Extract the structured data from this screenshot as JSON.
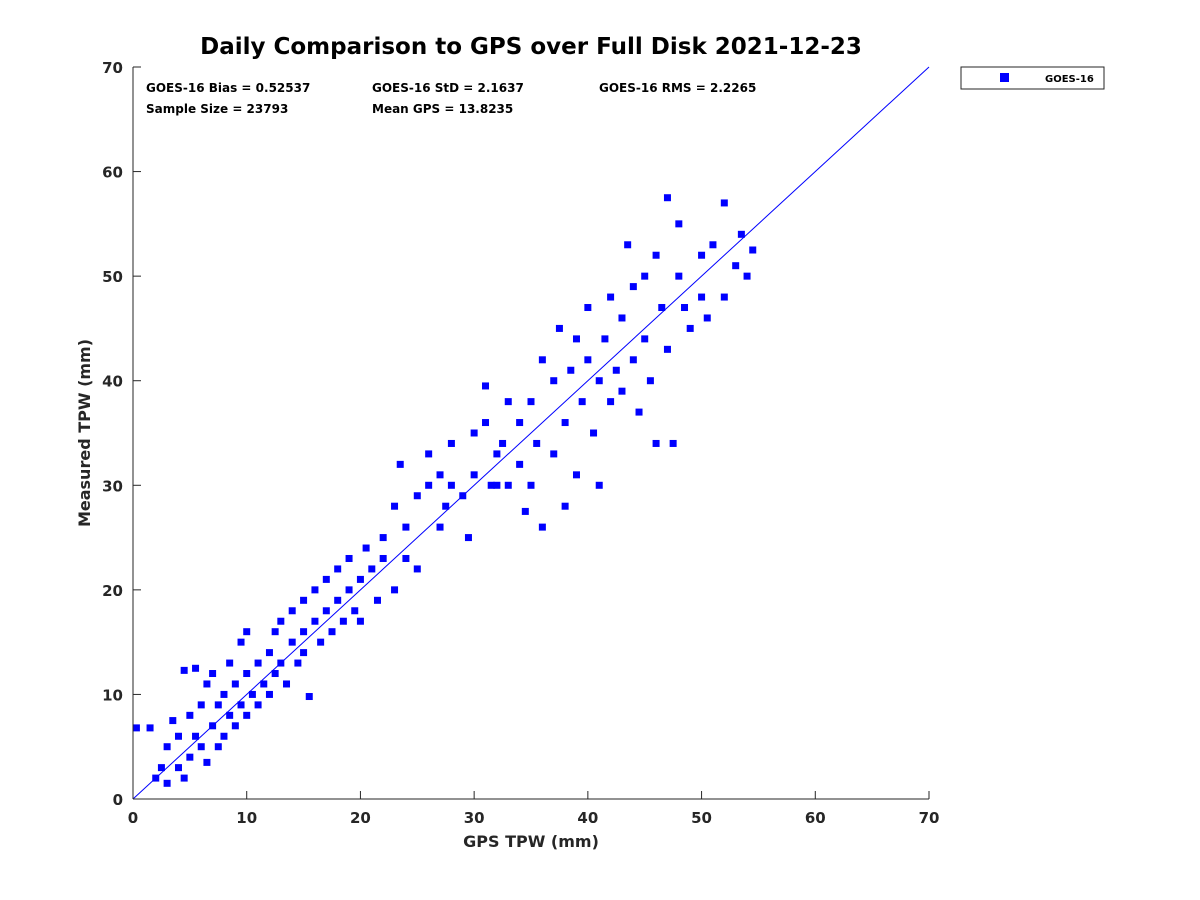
{
  "chart_data": {
    "type": "scatter",
    "title": "Daily Comparison to GPS over Full Disk 2021-12-23",
    "xlabel": "GPS TPW (mm)",
    "ylabel": "Measured TPW (mm)",
    "xlim": [
      0,
      70
    ],
    "ylim": [
      0,
      70
    ],
    "xticks": [
      "0",
      "10",
      "20",
      "30",
      "40",
      "50",
      "60",
      "70"
    ],
    "yticks": [
      "0",
      "10",
      "20",
      "30",
      "40",
      "50",
      "60",
      "70"
    ],
    "grid": false,
    "legend": {
      "position": "top-right-outside",
      "entries": [
        "GOES-16"
      ]
    },
    "stats": [
      "GOES-16 Bias = 0.52537",
      "GOES-16 StD = 2.1637",
      "GOES-16 RMS = 2.2265",
      "Sample Size = 23793",
      "Mean GPS = 13.8235"
    ],
    "reference_line": {
      "name": "1:1 line",
      "from": [
        0,
        0
      ],
      "to": [
        70,
        70
      ]
    },
    "series": [
      {
        "name": "GOES-16",
        "color": "#0000ff",
        "note": "representative sample of the 23793 points",
        "points": [
          [
            0.3,
            6.8
          ],
          [
            1.5,
            6.8
          ],
          [
            2,
            2
          ],
          [
            2.5,
            3
          ],
          [
            3,
            1.5
          ],
          [
            3,
            5
          ],
          [
            3.5,
            7.5
          ],
          [
            4,
            3
          ],
          [
            4,
            6
          ],
          [
            4.5,
            12.3
          ],
          [
            4.5,
            2
          ],
          [
            5,
            8
          ],
          [
            5,
            4
          ],
          [
            5.5,
            12.5
          ],
          [
            5.5,
            6
          ],
          [
            6,
            5
          ],
          [
            6,
            9
          ],
          [
            6.5,
            11
          ],
          [
            6.5,
            3.5
          ],
          [
            7,
            7
          ],
          [
            7,
            12
          ],
          [
            7.5,
            9
          ],
          [
            7.5,
            5
          ],
          [
            8,
            10
          ],
          [
            8,
            6
          ],
          [
            8.5,
            13
          ],
          [
            8.5,
            8
          ],
          [
            9,
            11
          ],
          [
            9,
            7
          ],
          [
            9.5,
            15
          ],
          [
            9.5,
            9
          ],
          [
            10,
            12
          ],
          [
            10,
            8
          ],
          [
            10,
            16
          ],
          [
            10.5,
            10
          ],
          [
            11,
            13
          ],
          [
            11,
            9
          ],
          [
            11.5,
            11
          ],
          [
            12,
            14
          ],
          [
            12,
            10
          ],
          [
            12.5,
            16
          ],
          [
            12.5,
            12
          ],
          [
            13,
            13
          ],
          [
            13,
            17
          ],
          [
            13.5,
            11
          ],
          [
            14,
            15
          ],
          [
            14,
            18
          ],
          [
            14.5,
            13
          ],
          [
            15,
            16
          ],
          [
            15,
            19
          ],
          [
            15,
            14
          ],
          [
            15.5,
            9.8
          ],
          [
            16,
            17
          ],
          [
            16,
            20
          ],
          [
            16.5,
            15
          ],
          [
            17,
            18
          ],
          [
            17,
            21
          ],
          [
            17.5,
            16
          ],
          [
            18,
            19
          ],
          [
            18,
            22
          ],
          [
            18.5,
            17
          ],
          [
            19,
            20
          ],
          [
            19,
            23
          ],
          [
            19.5,
            18
          ],
          [
            20,
            21
          ],
          [
            20,
            17
          ],
          [
            20.5,
            24
          ],
          [
            21,
            22
          ],
          [
            21.5,
            19
          ],
          [
            22,
            23
          ],
          [
            22,
            25
          ],
          [
            23,
            20
          ],
          [
            23,
            28
          ],
          [
            23.5,
            32
          ],
          [
            24,
            26
          ],
          [
            24,
            23
          ],
          [
            25,
            22
          ],
          [
            25,
            29
          ],
          [
            26,
            33
          ],
          [
            26,
            30
          ],
          [
            27,
            31
          ],
          [
            27,
            26
          ],
          [
            27.5,
            28
          ],
          [
            28,
            30
          ],
          [
            28,
            34
          ],
          [
            29,
            29
          ],
          [
            29.5,
            25
          ],
          [
            30,
            31
          ],
          [
            30,
            35
          ],
          [
            31,
            36
          ],
          [
            31,
            39.5
          ],
          [
            31.5,
            30
          ],
          [
            32,
            30
          ],
          [
            32,
            33
          ],
          [
            32.5,
            34
          ],
          [
            33,
            38
          ],
          [
            33,
            30
          ],
          [
            34,
            32
          ],
          [
            34,
            36
          ],
          [
            34.5,
            27.5
          ],
          [
            35,
            38
          ],
          [
            35,
            30
          ],
          [
            35.5,
            34
          ],
          [
            36,
            42
          ],
          [
            36,
            26
          ],
          [
            37,
            40
          ],
          [
            37,
            33
          ],
          [
            37.5,
            45
          ],
          [
            38,
            36
          ],
          [
            38,
            28
          ],
          [
            38.5,
            41
          ],
          [
            39,
            44
          ],
          [
            39,
            31
          ],
          [
            39.5,
            38
          ],
          [
            40,
            42
          ],
          [
            40,
            47
          ],
          [
            40.5,
            35
          ],
          [
            41,
            40
          ],
          [
            41,
            30
          ],
          [
            41.5,
            44
          ],
          [
            42,
            38
          ],
          [
            42,
            48
          ],
          [
            42.5,
            41
          ],
          [
            43,
            46
          ],
          [
            43,
            39
          ],
          [
            43.5,
            53
          ],
          [
            44,
            42
          ],
          [
            44,
            49
          ],
          [
            44.5,
            37
          ],
          [
            45,
            44
          ],
          [
            45,
            50
          ],
          [
            45.5,
            40
          ],
          [
            46,
            52
          ],
          [
            46,
            34
          ],
          [
            46.5,
            47
          ],
          [
            47,
            43
          ],
          [
            47,
            57.5
          ],
          [
            47.5,
            34
          ],
          [
            48,
            50
          ],
          [
            48,
            55
          ],
          [
            48.5,
            47
          ],
          [
            49,
            45
          ],
          [
            50,
            52
          ],
          [
            50,
            48
          ],
          [
            50.5,
            46
          ],
          [
            51,
            53
          ],
          [
            52,
            48
          ],
          [
            52,
            57
          ],
          [
            53,
            51
          ],
          [
            53.5,
            54
          ],
          [
            54,
            50
          ],
          [
            54.5,
            52.5
          ]
        ]
      }
    ]
  }
}
